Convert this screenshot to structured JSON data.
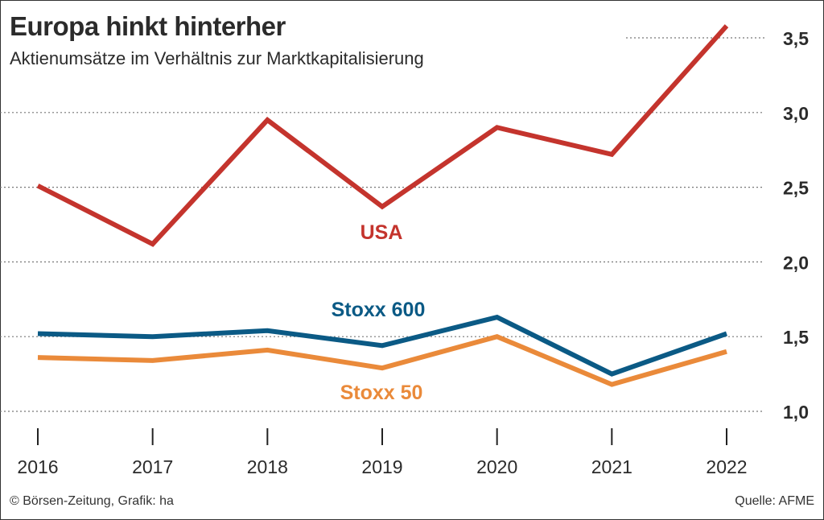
{
  "header": {
    "title": "Europa hinkt hinterher",
    "subtitle": "Aktienumsätze im Verhältnis zur Marktkapitalisierung"
  },
  "footer": {
    "credit": "© Börsen-Zeitung, Grafik: ha",
    "source": "Quelle: AFME"
  },
  "chart_data": {
    "type": "line",
    "title": "Europa hinkt hinterher",
    "subtitle": "Aktienumsätze im Verhältnis zur Marktkapitalisierung",
    "xlabel": "",
    "ylabel": "",
    "x": [
      "2016",
      "2017",
      "2018",
      "2019",
      "2020",
      "2021",
      "2022"
    ],
    "ylim": [
      1.0,
      3.5
    ],
    "yticks": [
      1.0,
      1.5,
      2.0,
      2.5,
      3.0,
      3.5
    ],
    "ytick_labels": [
      "1,0",
      "1,5",
      "2,0",
      "2,5",
      "3,0",
      "3,5"
    ],
    "grid": "horizontal dotted",
    "legend": "inline labels next to lines",
    "series": [
      {
        "name": "USA",
        "color": "#c4342d",
        "values": [
          2.51,
          2.12,
          2.95,
          2.37,
          2.9,
          2.72,
          3.58
        ]
      },
      {
        "name": "Stoxx 600",
        "color": "#0b5a85",
        "values": [
          1.52,
          1.5,
          1.54,
          1.44,
          1.63,
          1.25,
          1.52
        ]
      },
      {
        "name": "Stoxx 50",
        "color": "#ea8a3a",
        "values": [
          1.36,
          1.34,
          1.41,
          1.29,
          1.5,
          1.18,
          1.4
        ]
      }
    ]
  }
}
